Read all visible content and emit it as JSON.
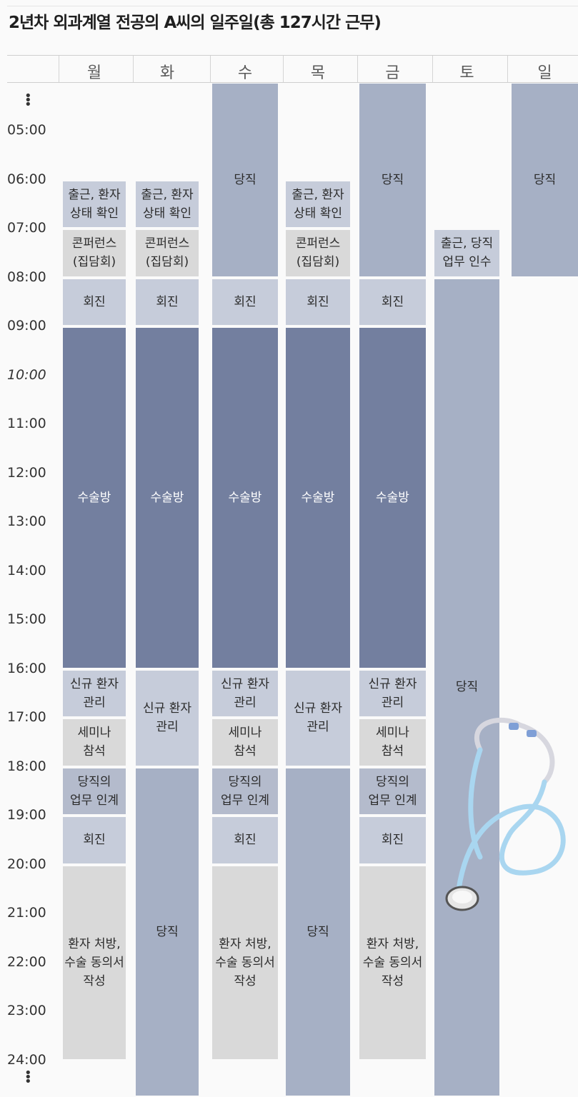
{
  "title": "2년차 외과계열 전공의 A씨의 일주일(총 127시간 근무)",
  "days": [
    "월",
    "화",
    "수",
    "목",
    "금",
    "토",
    "일"
  ],
  "time_labels": [
    "05:00",
    "06:00",
    "07:00",
    "08:00",
    "09:00",
    "10:00",
    "11:00",
    "12:00",
    "13:00",
    "14:00",
    "15:00",
    "16:00",
    "17:00",
    "18:00",
    "19:00",
    "20:00",
    "21:00",
    "22:00",
    "23:00",
    "24:00"
  ],
  "legend_colors": {
    "on_call": "#a6b0c5",
    "surgery": "#737f9f",
    "rounds": "#c6ccda",
    "conference": "#d9d9d9"
  },
  "schedule": [
    {
      "day": "월",
      "blocks": [
        {
          "label": "출근, 환자\n상태 확인",
          "start": "06:00",
          "end": "07:00",
          "type": "rounds"
        },
        {
          "label": "콘퍼런스\n(집담회)",
          "start": "07:00",
          "end": "08:00",
          "type": "conference"
        },
        {
          "label": "회진",
          "start": "08:00",
          "end": "09:00",
          "type": "rounds"
        },
        {
          "label": "수술방",
          "start": "09:00",
          "end": "16:00",
          "type": "surgery"
        },
        {
          "label": "신규 환자\n관리",
          "start": "16:00",
          "end": "17:00",
          "type": "rounds"
        },
        {
          "label": "세미나\n참석",
          "start": "17:00",
          "end": "18:00",
          "type": "conference"
        },
        {
          "label": "당직의\n업무 인계",
          "start": "18:00",
          "end": "19:00",
          "type": "handover"
        },
        {
          "label": "회진",
          "start": "19:00",
          "end": "20:00",
          "type": "rounds"
        },
        {
          "label": "환자 처방,\n수술 동의서\n작성",
          "start": "20:00",
          "end": "24:00",
          "type": "conference"
        }
      ]
    },
    {
      "day": "화",
      "blocks": [
        {
          "label": "출근, 환자\n상태 확인",
          "start": "06:00",
          "end": "07:00",
          "type": "rounds"
        },
        {
          "label": "콘퍼런스\n(집담회)",
          "start": "07:00",
          "end": "08:00",
          "type": "conference"
        },
        {
          "label": "회진",
          "start": "08:00",
          "end": "09:00",
          "type": "rounds"
        },
        {
          "label": "수술방",
          "start": "09:00",
          "end": "16:00",
          "type": "surgery"
        },
        {
          "label": "신규 환자\n관리",
          "start": "16:00",
          "end": "18:00",
          "type": "rounds"
        },
        {
          "label": "당직",
          "start": "18:00",
          "end": "24:00+",
          "type": "on_call"
        }
      ]
    },
    {
      "day": "수",
      "blocks": [
        {
          "label": "당직",
          "start": "~05:00",
          "end": "08:00",
          "type": "on_call"
        },
        {
          "label": "회진",
          "start": "08:00",
          "end": "09:00",
          "type": "rounds"
        },
        {
          "label": "수술방",
          "start": "09:00",
          "end": "16:00",
          "type": "surgery"
        },
        {
          "label": "신규 환자\n관리",
          "start": "16:00",
          "end": "17:00",
          "type": "rounds"
        },
        {
          "label": "세미나\n참석",
          "start": "17:00",
          "end": "18:00",
          "type": "conference"
        },
        {
          "label": "당직의\n업무 인계",
          "start": "18:00",
          "end": "19:00",
          "type": "handover"
        },
        {
          "label": "회진",
          "start": "19:00",
          "end": "20:00",
          "type": "rounds"
        },
        {
          "label": "환자 처방,\n수술 동의서\n작성",
          "start": "20:00",
          "end": "24:00",
          "type": "conference"
        }
      ]
    },
    {
      "day": "목",
      "blocks": [
        {
          "label": "출근, 환자\n상태 확인",
          "start": "06:00",
          "end": "07:00",
          "type": "rounds"
        },
        {
          "label": "콘퍼런스\n(집담회)",
          "start": "07:00",
          "end": "08:00",
          "type": "conference"
        },
        {
          "label": "회진",
          "start": "08:00",
          "end": "09:00",
          "type": "rounds"
        },
        {
          "label": "수술방",
          "start": "09:00",
          "end": "16:00",
          "type": "surgery"
        },
        {
          "label": "신규 환자\n관리",
          "start": "16:00",
          "end": "18:00",
          "type": "rounds"
        },
        {
          "label": "당직",
          "start": "18:00",
          "end": "24:00+",
          "type": "on_call"
        }
      ]
    },
    {
      "day": "금",
      "blocks": [
        {
          "label": "당직",
          "start": "~05:00",
          "end": "08:00",
          "type": "on_call"
        },
        {
          "label": "회진",
          "start": "08:00",
          "end": "09:00",
          "type": "rounds"
        },
        {
          "label": "수술방",
          "start": "09:00",
          "end": "16:00",
          "type": "surgery"
        },
        {
          "label": "신규 환자\n관리",
          "start": "16:00",
          "end": "17:00",
          "type": "rounds"
        },
        {
          "label": "세미나\n참석",
          "start": "17:00",
          "end": "18:00",
          "type": "conference"
        },
        {
          "label": "당직의\n업무 인계",
          "start": "18:00",
          "end": "19:00",
          "type": "handover"
        },
        {
          "label": "회진",
          "start": "19:00",
          "end": "20:00",
          "type": "rounds"
        },
        {
          "label": "환자 처방,\n수술 동의서\n작성",
          "start": "20:00",
          "end": "24:00",
          "type": "conference"
        }
      ]
    },
    {
      "day": "토",
      "blocks": [
        {
          "label": "출근, 당직\n업무 인수",
          "start": "07:00",
          "end": "08:00",
          "type": "rounds"
        },
        {
          "label": "당직",
          "start": "08:00",
          "end": "24:00+",
          "type": "on_call"
        }
      ]
    },
    {
      "day": "일",
      "blocks": [
        {
          "label": "당직",
          "start": "~05:00",
          "end": "08:00",
          "type": "on_call"
        }
      ]
    }
  ]
}
